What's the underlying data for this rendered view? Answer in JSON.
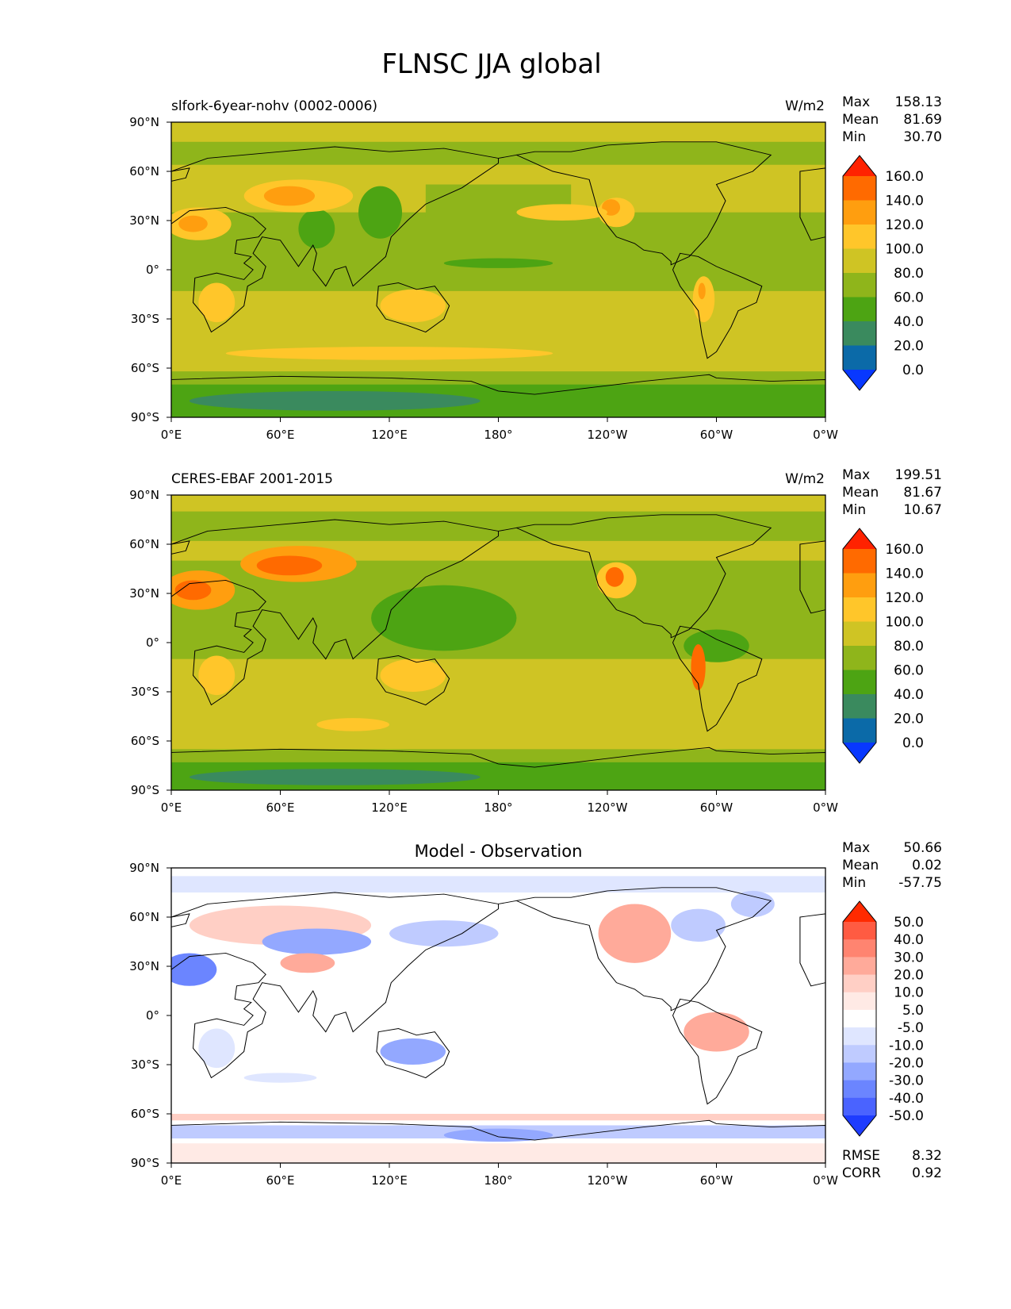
{
  "figure": {
    "title": "FLNSC JJA global"
  },
  "chart_data": [
    {
      "type": "heatmap",
      "title": "slfork-6year-nohv (0002-0006)",
      "units": "W/m2",
      "stats": {
        "max_label": "Max",
        "max": "158.13",
        "mean_label": "Mean",
        "mean": "81.69",
        "min_label": "Min",
        "min": "30.70"
      },
      "x_ticks": [
        "0°E",
        "60°E",
        "120°E",
        "180°",
        "120°W",
        "60°W",
        "0°W"
      ],
      "y_ticks": [
        "90°N",
        "60°N",
        "30°N",
        "0°",
        "30°S",
        "60°S",
        "90°S"
      ],
      "xlim": [
        0,
        360
      ],
      "ylim": [
        -90,
        90
      ],
      "colorbar": {
        "levels": [
          "160.0",
          "140.0",
          "120.0",
          "100.0",
          "80.0",
          "60.0",
          "40.0",
          "20.0",
          "0.0"
        ],
        "colors": [
          "#ff2200",
          "#ff6a00",
          "#ff9e0f",
          "#ffc62a",
          "#cfc424",
          "#8fb51b",
          "#4da413",
          "#3a8a5e",
          "#0b6aa8",
          "#0838ff"
        ]
      }
    },
    {
      "type": "heatmap",
      "title": "CERES-EBAF 2001-2015",
      "units": "W/m2",
      "stats": {
        "max_label": "Max",
        "max": "199.51",
        "mean_label": "Mean",
        "mean": "81.67",
        "min_label": "Min",
        "min": "10.67"
      },
      "x_ticks": [
        "0°E",
        "60°E",
        "120°E",
        "180°",
        "120°W",
        "60°W",
        "0°W"
      ],
      "y_ticks": [
        "90°N",
        "60°N",
        "30°N",
        "0°",
        "30°S",
        "60°S",
        "90°S"
      ],
      "xlim": [
        0,
        360
      ],
      "ylim": [
        -90,
        90
      ],
      "colorbar": {
        "levels": [
          "160.0",
          "140.0",
          "120.0",
          "100.0",
          "80.0",
          "60.0",
          "40.0",
          "20.0",
          "0.0"
        ],
        "colors": [
          "#ff2200",
          "#ff6a00",
          "#ff9e0f",
          "#ffc62a",
          "#cfc424",
          "#8fb51b",
          "#4da413",
          "#3a8a5e",
          "#0b6aa8",
          "#0838ff"
        ]
      }
    },
    {
      "type": "heatmap",
      "title": "Model - Observation",
      "units": "",
      "stats": {
        "max_label": "Max",
        "max": "50.66",
        "mean_label": "Mean",
        "mean": "0.02",
        "min_label": "Min",
        "min": "-57.75"
      },
      "metrics": {
        "rmse_label": "RMSE",
        "rmse": "8.32",
        "corr_label": "CORR",
        "corr": "0.92"
      },
      "x_ticks": [
        "0°E",
        "60°E",
        "120°E",
        "180°",
        "120°W",
        "60°W",
        "0°W"
      ],
      "y_ticks": [
        "90°N",
        "60°N",
        "30°N",
        "0°",
        "30°S",
        "60°S",
        "90°S"
      ],
      "xlim": [
        0,
        360
      ],
      "ylim": [
        -90,
        90
      ],
      "colorbar": {
        "levels": [
          "50.0",
          "40.0",
          "30.0",
          "20.0",
          "10.0",
          "5.0",
          "-5.0",
          "-10.0",
          "-20.0",
          "-30.0",
          "-40.0",
          "-50.0"
        ],
        "colors": [
          "#ff2a00",
          "#ff5b42",
          "#ff8470",
          "#ffaa9a",
          "#ffcfc5",
          "#ffeae5",
          "#ffffff",
          "#dfe6ff",
          "#bfcbff",
          "#93a8ff",
          "#6b85ff",
          "#4a63ff",
          "#1e3cff"
        ]
      }
    }
  ]
}
